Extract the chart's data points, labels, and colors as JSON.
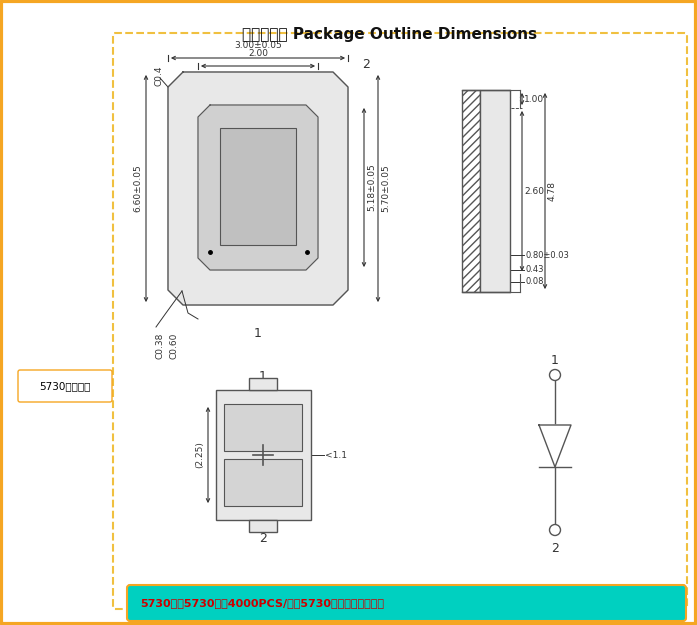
{
  "title": "外型尺寸图 Package Outline Dimensions",
  "title_fontsize": 11,
  "fig_bg": "#ffffff",
  "outer_border_color": "#f5a623",
  "inner_border_color": "#f0c040",
  "bottom_bar_color": "#00d0c0",
  "bottom_text": "5730灯珠5730灯珠4000PCS/盘，5730灯珠尺寸如上图。",
  "bottom_text_color": "#cc0000",
  "side_label": "5730焊盘尺寸",
  "side_label_color": "#000000",
  "dim_color": "#333333"
}
